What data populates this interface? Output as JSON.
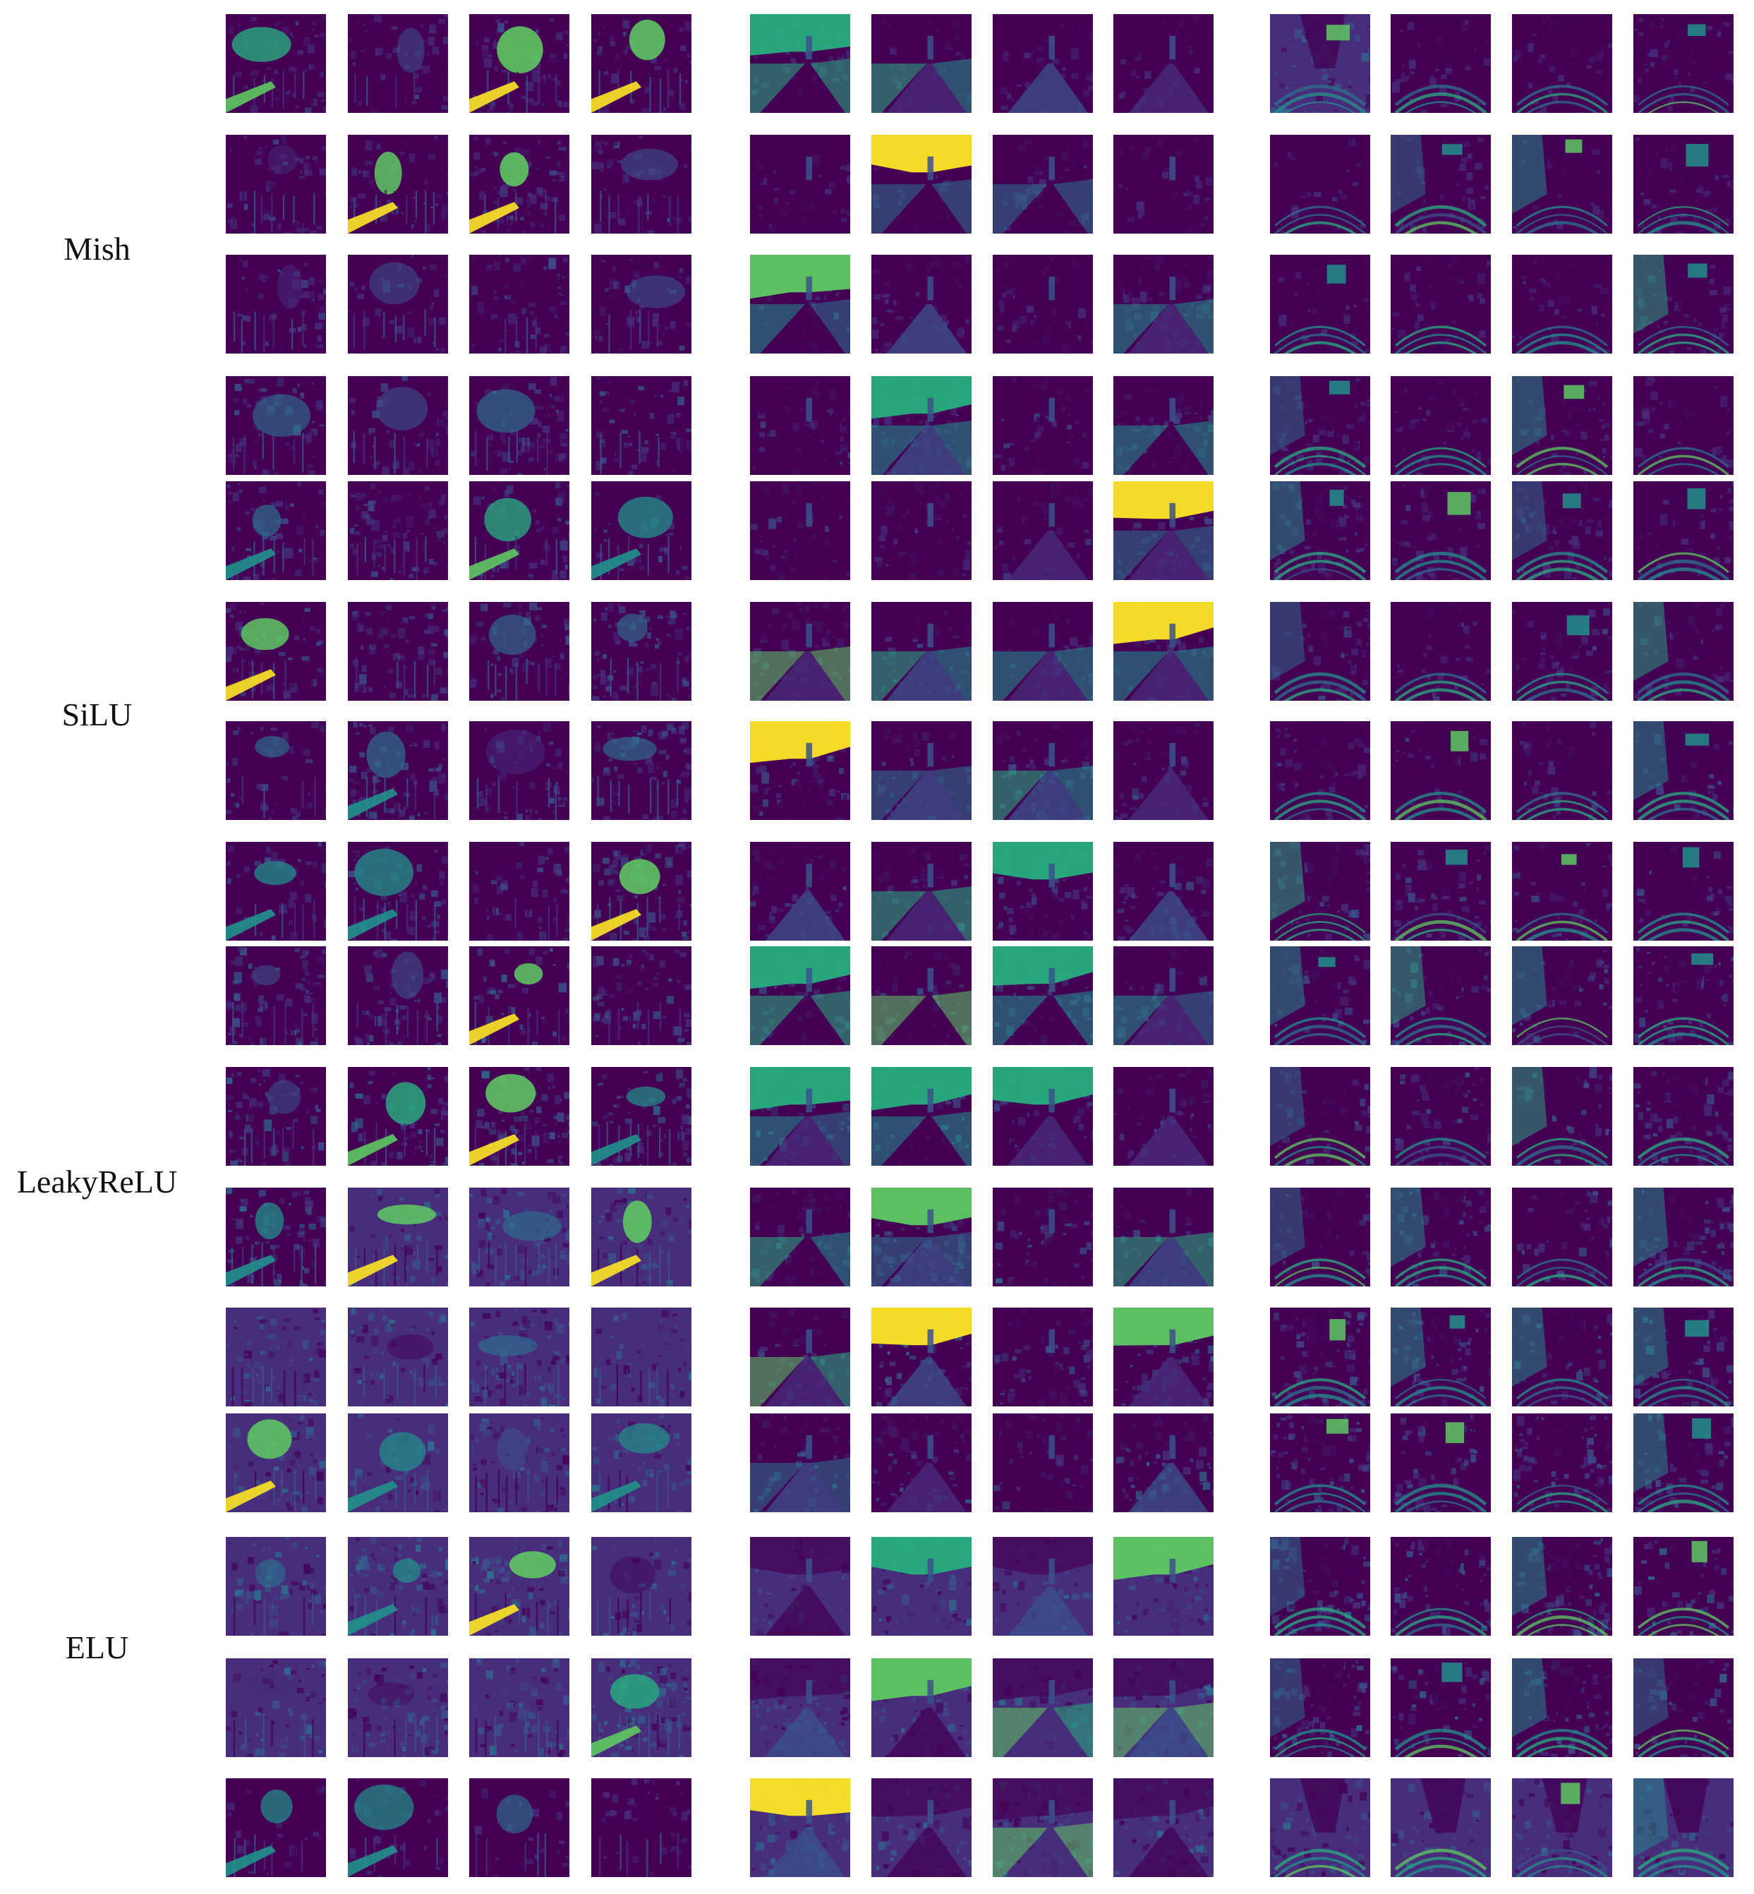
{
  "figure": {
    "groups": [
      {
        "label": "Mish"
      },
      {
        "label": "SiLU"
      },
      {
        "label": "LeakyReLU"
      },
      {
        "label": "ELU"
      }
    ],
    "palette": {
      "dark": "#440154",
      "purple": "#472d7b",
      "blue": "#3b528b",
      "teal": "#2c728e",
      "cyan": "#21918c",
      "green": "#28ae80",
      "light_green": "#5ec962",
      "yellow": "#fde725"
    },
    "panel_scenes": [
      "vineyard-rows",
      "field-road-tower",
      "tree-lined-path"
    ],
    "tile_grid": {
      "rows": 16,
      "columns_per_panel": 4,
      "panels": 3
    }
  }
}
